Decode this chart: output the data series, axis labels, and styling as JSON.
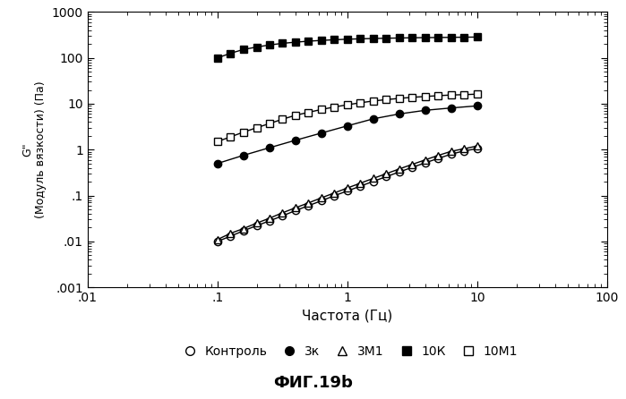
{
  "title": "ФИГ.19b",
  "xlabel": "Частота (Гц)",
  "ylabel_top": "G\"  (Модуль вязкости) (Па)",
  "xlim": [
    0.01,
    100
  ],
  "ylim": [
    0.001,
    1000
  ],
  "series": [
    {
      "label": "Контроль",
      "marker": "o",
      "fillstyle": "none",
      "x": [
        0.1,
        0.126,
        0.158,
        0.2,
        0.251,
        0.316,
        0.398,
        0.501,
        0.631,
        0.794,
        1.0,
        1.259,
        1.585,
        1.995,
        2.512,
        3.162,
        3.981,
        5.012,
        6.31,
        7.943,
        10.0
      ],
      "y": [
        0.01,
        0.013,
        0.017,
        0.022,
        0.028,
        0.036,
        0.047,
        0.06,
        0.077,
        0.099,
        0.126,
        0.16,
        0.204,
        0.258,
        0.327,
        0.412,
        0.517,
        0.645,
        0.8,
        0.94,
        1.05
      ]
    },
    {
      "label": "3к",
      "marker": "o",
      "fillstyle": "full",
      "x": [
        0.1,
        0.158,
        0.251,
        0.398,
        0.631,
        1.0,
        1.585,
        2.512,
        3.981,
        6.31,
        10.0
      ],
      "y": [
        0.5,
        0.75,
        1.1,
        1.6,
        2.3,
        3.3,
        4.7,
        6.0,
        7.2,
        8.1,
        9.0
      ]
    },
    {
      "label": "3М1",
      "marker": "^",
      "fillstyle": "none",
      "x": [
        0.1,
        0.126,
        0.158,
        0.2,
        0.251,
        0.316,
        0.398,
        0.501,
        0.631,
        0.794,
        1.0,
        1.259,
        1.585,
        1.995,
        2.512,
        3.162,
        3.981,
        5.012,
        6.31,
        7.943,
        10.0
      ],
      "y": [
        0.011,
        0.015,
        0.019,
        0.025,
        0.032,
        0.042,
        0.054,
        0.069,
        0.089,
        0.114,
        0.146,
        0.186,
        0.237,
        0.3,
        0.38,
        0.478,
        0.6,
        0.75,
        0.92,
        1.05,
        1.2
      ]
    },
    {
      "label": "10К",
      "marker": "s",
      "fillstyle": "full",
      "x": [
        0.1,
        0.126,
        0.158,
        0.2,
        0.251,
        0.316,
        0.398,
        0.501,
        0.631,
        0.794,
        1.0,
        1.259,
        1.585,
        1.995,
        2.512,
        3.162,
        3.981,
        5.012,
        6.31,
        7.943,
        10.0
      ],
      "y": [
        100,
        126,
        152,
        172,
        191,
        207,
        220,
        231,
        240,
        248,
        255,
        260,
        264,
        268,
        271,
        274,
        276,
        278,
        280,
        282,
        284
      ]
    },
    {
      "label": "10М1",
      "marker": "s",
      "fillstyle": "none",
      "x": [
        0.1,
        0.126,
        0.158,
        0.2,
        0.251,
        0.316,
        0.398,
        0.501,
        0.631,
        0.794,
        1.0,
        1.259,
        1.585,
        1.995,
        2.512,
        3.162,
        3.981,
        5.012,
        6.31,
        7.943,
        10.0
      ],
      "y": [
        1.5,
        1.9,
        2.4,
        3.0,
        3.7,
        4.6,
        5.6,
        6.5,
        7.5,
        8.5,
        9.5,
        10.5,
        11.5,
        12.3,
        13.1,
        13.8,
        14.4,
        15.0,
        15.5,
        15.8,
        16.2
      ]
    }
  ],
  "background_color": "#ffffff",
  "markersize": 6,
  "linewidth": 1.0
}
